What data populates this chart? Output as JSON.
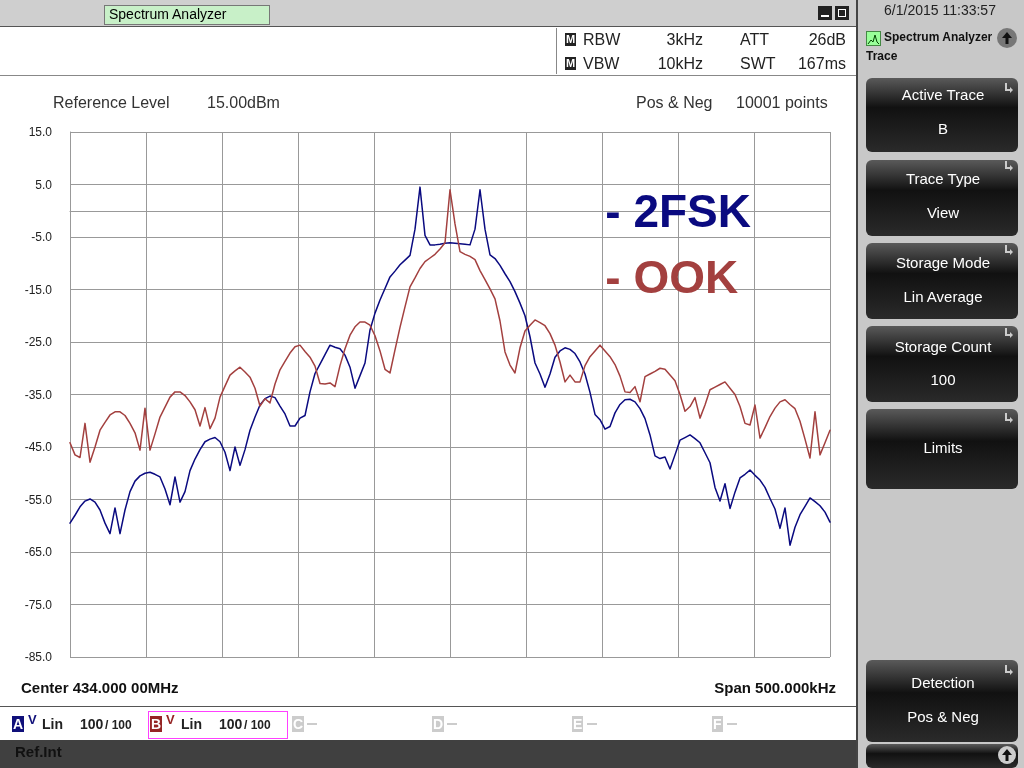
{
  "chart_data": {
    "type": "line",
    "title": "Spectrum Analyzer",
    "annotations": [
      "RBW",
      "3kHz",
      "VBW",
      "10kHz",
      "ATT",
      "26dB",
      "SWT",
      "167ms",
      "Reference Level",
      "15.00dBm",
      "Pos & Neg",
      "10001 points",
      "Center 434.000 00MHz",
      "Span 500.000kHz",
      "6/1/2015 11:33:57",
      "Spectrum Analyzer",
      "Trace",
      "Active Trace",
      "B",
      "Trace Type",
      "View",
      "Storage Mode",
      "Lin Average",
      "Storage Count",
      "100",
      "Limits",
      "Detection",
      "Pos & Neg",
      "Ref.Int",
      "A",
      "V",
      "Lin",
      "100",
      "/ 100",
      "B",
      "V",
      "Lin",
      "100",
      "/ 100",
      "C",
      "D",
      "E",
      "F",
      "M",
      "M"
    ],
    "categories": [
      null,
      null,
      null,
      null,
      null,
      null,
      null,
      null,
      null,
      null,
      null,
      null,
      null,
      null,
      null,
      null,
      null,
      null,
      null,
      null,
      null,
      null,
      null,
      null,
      null,
      null,
      null,
      null,
      null,
      null,
      null,
      null,
      null,
      null,
      null,
      null,
      null,
      null,
      null,
      null,
      null,
      null,
      null,
      null,
      null,
      null,
      null,
      null,
      null,
      null,
      null,
      null,
      null,
      null,
      null,
      null,
      null,
      null,
      null,
      null,
      null,
      null,
      null,
      null,
      null,
      null,
      null,
      null,
      null,
      null,
      null,
      null,
      null,
      null,
      null,
      null,
      null,
      null,
      null,
      null,
      null,
      null,
      null,
      null,
      null,
      null,
      null,
      null,
      null,
      null,
      null,
      null,
      null,
      null,
      null,
      null,
      null,
      null,
      null,
      null,
      null,
      null,
      null,
      null,
      null,
      null,
      null,
      null,
      null,
      null,
      null,
      null,
      null,
      null,
      null,
      null,
      null,
      null,
      null,
      null,
      null,
      null,
      null,
      null,
      null,
      null,
      null,
      null,
      null,
      null,
      null,
      null,
      null,
      null,
      null,
      null,
      null,
      null,
      null,
      null,
      null,
      null,
      null,
      null,
      null,
      null,
      null,
      null,
      null,
      null,
      null,
      null,
      null
    ],
    "ylim": [
      -85,
      15
    ],
    "yticks": [
      {
        "value": 15,
        "label": "15.0"
      },
      {
        "value": 5,
        "label": "5.0"
      },
      {
        "value": -5,
        "label": "-5.0"
      },
      {
        "value": -15,
        "label": "-15.0"
      },
      {
        "value": -25,
        "label": "-25.0"
      },
      {
        "value": -35,
        "label": "-35.0"
      },
      {
        "value": -45,
        "label": "-45.0"
      },
      {
        "value": -55,
        "label": "-55.0"
      },
      {
        "value": -65,
        "label": "-65.0"
      },
      {
        "value": -75,
        "label": "-75.0"
      },
      {
        "value": -85,
        "label": "-85.0"
      }
    ],
    "tick_labels": "y",
    "grid": true,
    "legend": "top right",
    "marker": "none",
    "line_style": "solid",
    "series": [
      {
        "name": "- 2FSK",
        "color": "#0a0a80",
        "values": [
          -59.5,
          -58,
          -56.4,
          -55.3,
          -54.9,
          -55.5,
          -57,
          -59.5,
          -61.5,
          -56.6,
          -61.5,
          -57,
          -53.5,
          -51.5,
          -50.5,
          -50,
          -49.8,
          -50.2,
          -50.7,
          -53,
          -56,
          -50.7,
          -55.5,
          -53.5,
          -49.5,
          -47.3,
          -45.5,
          -44,
          -43.5,
          -43.2,
          -44,
          -46,
          -49.5,
          -45,
          -48.5,
          -45.5,
          -41.8,
          -39.3,
          -37,
          -35.8,
          -35.3,
          -35.6,
          -37.2,
          -38.7,
          -41,
          -41,
          -39.5,
          -39,
          -34.5,
          -31,
          -29.2,
          -27.4,
          -25.6,
          -26,
          -26.3,
          -27.5,
          -29.8,
          -33.8,
          -31.4,
          -29,
          -22.7,
          -19.5,
          -17,
          -14.8,
          -12.6,
          -11.5,
          -10.3,
          -9.4,
          -8.5,
          -3.5,
          4.5,
          -4.7,
          -6.5,
          -6.5,
          -6.4,
          -6.2,
          -6.1,
          -6.2,
          -6.3,
          -6.4,
          -6.5,
          -3.5,
          4,
          -3.5,
          -8.4,
          -9.1,
          -10.4,
          -12,
          -13.5,
          -15.4,
          -17.6,
          -20,
          -24,
          -29,
          -31.1,
          -33.6,
          -31.1,
          -27.9,
          -26.7,
          -26.1,
          -26.4,
          -27.2,
          -28.8,
          -31.1,
          -34.6,
          -38.8,
          -39.8,
          -41.6,
          -41.1,
          -38.5,
          -36.9,
          -36,
          -35.9,
          -36.4,
          -37.7,
          -39.6,
          -42.7,
          -46.7,
          -47.2,
          -46.9,
          -49.2,
          -46.5,
          -43.7,
          -43.2,
          -42.7,
          -43.4,
          -44.2,
          -46.1,
          -48,
          -52.7,
          -55.3,
          -52,
          -56.7,
          -53.6,
          -50.9,
          -50.2,
          -49.4,
          -50.4,
          -51.3,
          -52.7,
          -54.8,
          -56.8,
          -60.5,
          -56.6,
          -63.7,
          -60.3,
          -57.9,
          -56.3,
          -54.7,
          -55.4,
          -56.2,
          -57.4,
          -59.3
        ]
      },
      {
        "name": "- OOK",
        "color": "#a3403f",
        "values": [
          -44.2,
          -46.5,
          -47,
          -40.5,
          -47.9,
          -45,
          -41.8,
          -40.3,
          -38.9,
          -38.3,
          -38.3,
          -39,
          -40.5,
          -42.3,
          -45.6,
          -37.6,
          -45.6,
          -42.5,
          -39.3,
          -37.4,
          -35.5,
          -34.5,
          -34.5,
          -35.2,
          -36.4,
          -37.9,
          -41,
          -37.5,
          -41.5,
          -39.5,
          -35.5,
          -33.4,
          -31.3,
          -30.5,
          -29.8,
          -30.7,
          -31.7,
          -33.8,
          -37.2,
          -35.8,
          -36.6,
          -33,
          -30.3,
          -28.7,
          -27.1,
          -25.9,
          -25.6,
          -26.8,
          -27.9,
          -29.6,
          -32.9,
          -33,
          -32.8,
          -33.5,
          -29.5,
          -26.3,
          -23.7,
          -22.1,
          -21.2,
          -21.2,
          -21.8,
          -23.8,
          -26.7,
          -30.2,
          -30.9,
          -26.5,
          -22.2,
          -18.3,
          -14.5,
          -12.8,
          -11,
          -9.7,
          -9,
          -8.3,
          -7.3,
          -6.1,
          4,
          -2.5,
          -7.8,
          -8.3,
          -8.7,
          -9.3,
          -11.4,
          -13.1,
          -14.9,
          -16.8,
          -21,
          -26.9,
          -29.4,
          -30.9,
          -26.1,
          -22.9,
          -21.8,
          -20.8,
          -21.3,
          -21.9,
          -23.4,
          -25.6,
          -28.8,
          -32.6,
          -31.3,
          -32.6,
          -32.6,
          -29.5,
          -27.8,
          -26.7,
          -25.6,
          -26.7,
          -27.8,
          -29.3,
          -31.5,
          -34.5,
          -34.6,
          -33.5,
          -36.4,
          -31.6,
          -31.1,
          -30.6,
          -30,
          -30.2,
          -31.3,
          -32.4,
          -35,
          -38.2,
          -37.3,
          -35.6,
          -39.5,
          -37,
          -34.1,
          -33.6,
          -33.1,
          -32.6,
          -33.8,
          -35,
          -37.3,
          -40.5,
          -40.8,
          -37,
          -43.3,
          -41.3,
          -39.2,
          -37.6,
          -36.4,
          -36,
          -36.9,
          -37.7,
          -40.1,
          -43.5,
          -47.1,
          -38.3,
          -46.5,
          -44.2,
          -41.8
        ]
      }
    ]
  }
}
